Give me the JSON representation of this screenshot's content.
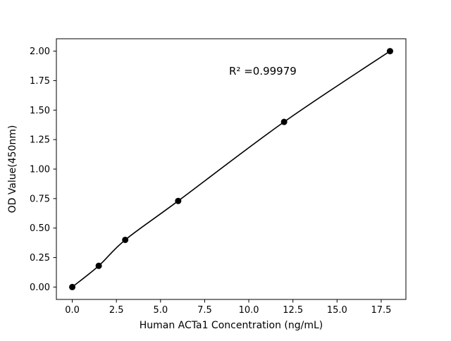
{
  "chart_data": {
    "type": "scatter",
    "title": "",
    "xlabel": "Human ACTa1 Concentration (ng/mL)",
    "ylabel": "OD Value(450nm)",
    "annotation": "R² =0.99979",
    "x": [
      0,
      1.5,
      3,
      6,
      12,
      18
    ],
    "y": [
      0.0,
      0.18,
      0.4,
      0.73,
      1.4,
      2.0
    ],
    "xlim": [
      -0.9,
      18.9
    ],
    "ylim": [
      -0.105,
      2.105
    ],
    "xticks": [
      {
        "value": 0,
        "label": "0.0"
      },
      {
        "value": 2.5,
        "label": "2.5"
      },
      {
        "value": 5,
        "label": "5.0"
      },
      {
        "value": 7.5,
        "label": "7.5"
      },
      {
        "value": 10,
        "label": "10.0"
      },
      {
        "value": 12.5,
        "label": "12.5"
      },
      {
        "value": 15,
        "label": "15.0"
      },
      {
        "value": 17.5,
        "label": "17.5"
      }
    ],
    "yticks": [
      {
        "value": 0.0,
        "label": "0.00"
      },
      {
        "value": 0.25,
        "label": "0.25"
      },
      {
        "value": 0.5,
        "label": "0.50"
      },
      {
        "value": 0.75,
        "label": "0.75"
      },
      {
        "value": 1.0,
        "label": "1.00"
      },
      {
        "value": 1.25,
        "label": "1.25"
      },
      {
        "value": 1.5,
        "label": "1.50"
      },
      {
        "value": 1.75,
        "label": "1.75"
      },
      {
        "value": 2.0,
        "label": "2.00"
      }
    ],
    "line_color": "#000000",
    "marker_color": "#000000",
    "background_color": "#ffffff",
    "grid": "off",
    "legend": "none"
  }
}
